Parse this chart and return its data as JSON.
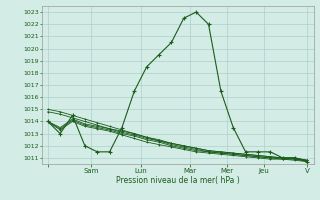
{
  "background_color": "#d4ece6",
  "grid_color": "#b0d0cc",
  "line_color": "#1a5c1a",
  "xlabel": "Pression niveau de la mer( hPa )",
  "ylim": [
    1010.5,
    1023.5
  ],
  "yticks": [
    1011,
    1012,
    1013,
    1014,
    1015,
    1016,
    1017,
    1018,
    1019,
    1020,
    1021,
    1022,
    1023
  ],
  "xtick_labels": [
    "",
    "Sam",
    "Lun",
    "Mar",
    "Mer",
    "Jeu",
    "V"
  ],
  "day_positions": [
    0,
    3.5,
    7.5,
    11.5,
    14.5,
    17.5,
    21
  ],
  "n_points": 22,
  "series_main": [
    1014.0,
    1013.0,
    1014.5,
    1012.0,
    1011.5,
    1011.5,
    1013.5,
    1016.5,
    1018.5,
    1019.5,
    1020.5,
    1022.5,
    1023.0,
    1022.0,
    1016.5,
    1013.5,
    1011.5,
    1011.5,
    1011.5,
    1011.0,
    1011.0,
    1010.7
  ],
  "series_flat": [
    [
      1014.0,
      1013.5,
      1014.2,
      1013.8,
      1013.6,
      1013.4,
      1013.2,
      1013.0,
      1012.7,
      1012.4,
      1012.2,
      1012.0,
      1011.8,
      1011.6,
      1011.5,
      1011.4,
      1011.3,
      1011.2,
      1011.1,
      1011.0,
      1011.0,
      1010.8
    ],
    [
      1014.0,
      1013.4,
      1014.1,
      1013.7,
      1013.5,
      1013.3,
      1013.0,
      1012.8,
      1012.5,
      1012.3,
      1012.0,
      1011.8,
      1011.6,
      1011.5,
      1011.4,
      1011.3,
      1011.2,
      1011.1,
      1011.0,
      1011.0,
      1010.9,
      1010.8
    ],
    [
      1014.0,
      1013.3,
      1014.0,
      1013.6,
      1013.4,
      1013.2,
      1012.9,
      1012.6,
      1012.3,
      1012.1,
      1011.9,
      1011.7,
      1011.5,
      1011.4,
      1011.3,
      1011.2,
      1011.1,
      1011.0,
      1010.9,
      1010.9,
      1010.8,
      1010.7
    ],
    [
      1015.0,
      1014.8,
      1014.5,
      1014.2,
      1013.9,
      1013.6,
      1013.3,
      1013.0,
      1012.7,
      1012.5,
      1012.2,
      1012.0,
      1011.8,
      1011.6,
      1011.5,
      1011.4,
      1011.3,
      1011.2,
      1011.1,
      1011.0,
      1011.0,
      1010.8
    ],
    [
      1014.8,
      1014.6,
      1014.3,
      1014.0,
      1013.7,
      1013.4,
      1013.1,
      1012.9,
      1012.6,
      1012.4,
      1012.1,
      1011.9,
      1011.7,
      1011.5,
      1011.4,
      1011.3,
      1011.2,
      1011.1,
      1011.0,
      1010.9,
      1010.9,
      1010.7
    ]
  ]
}
